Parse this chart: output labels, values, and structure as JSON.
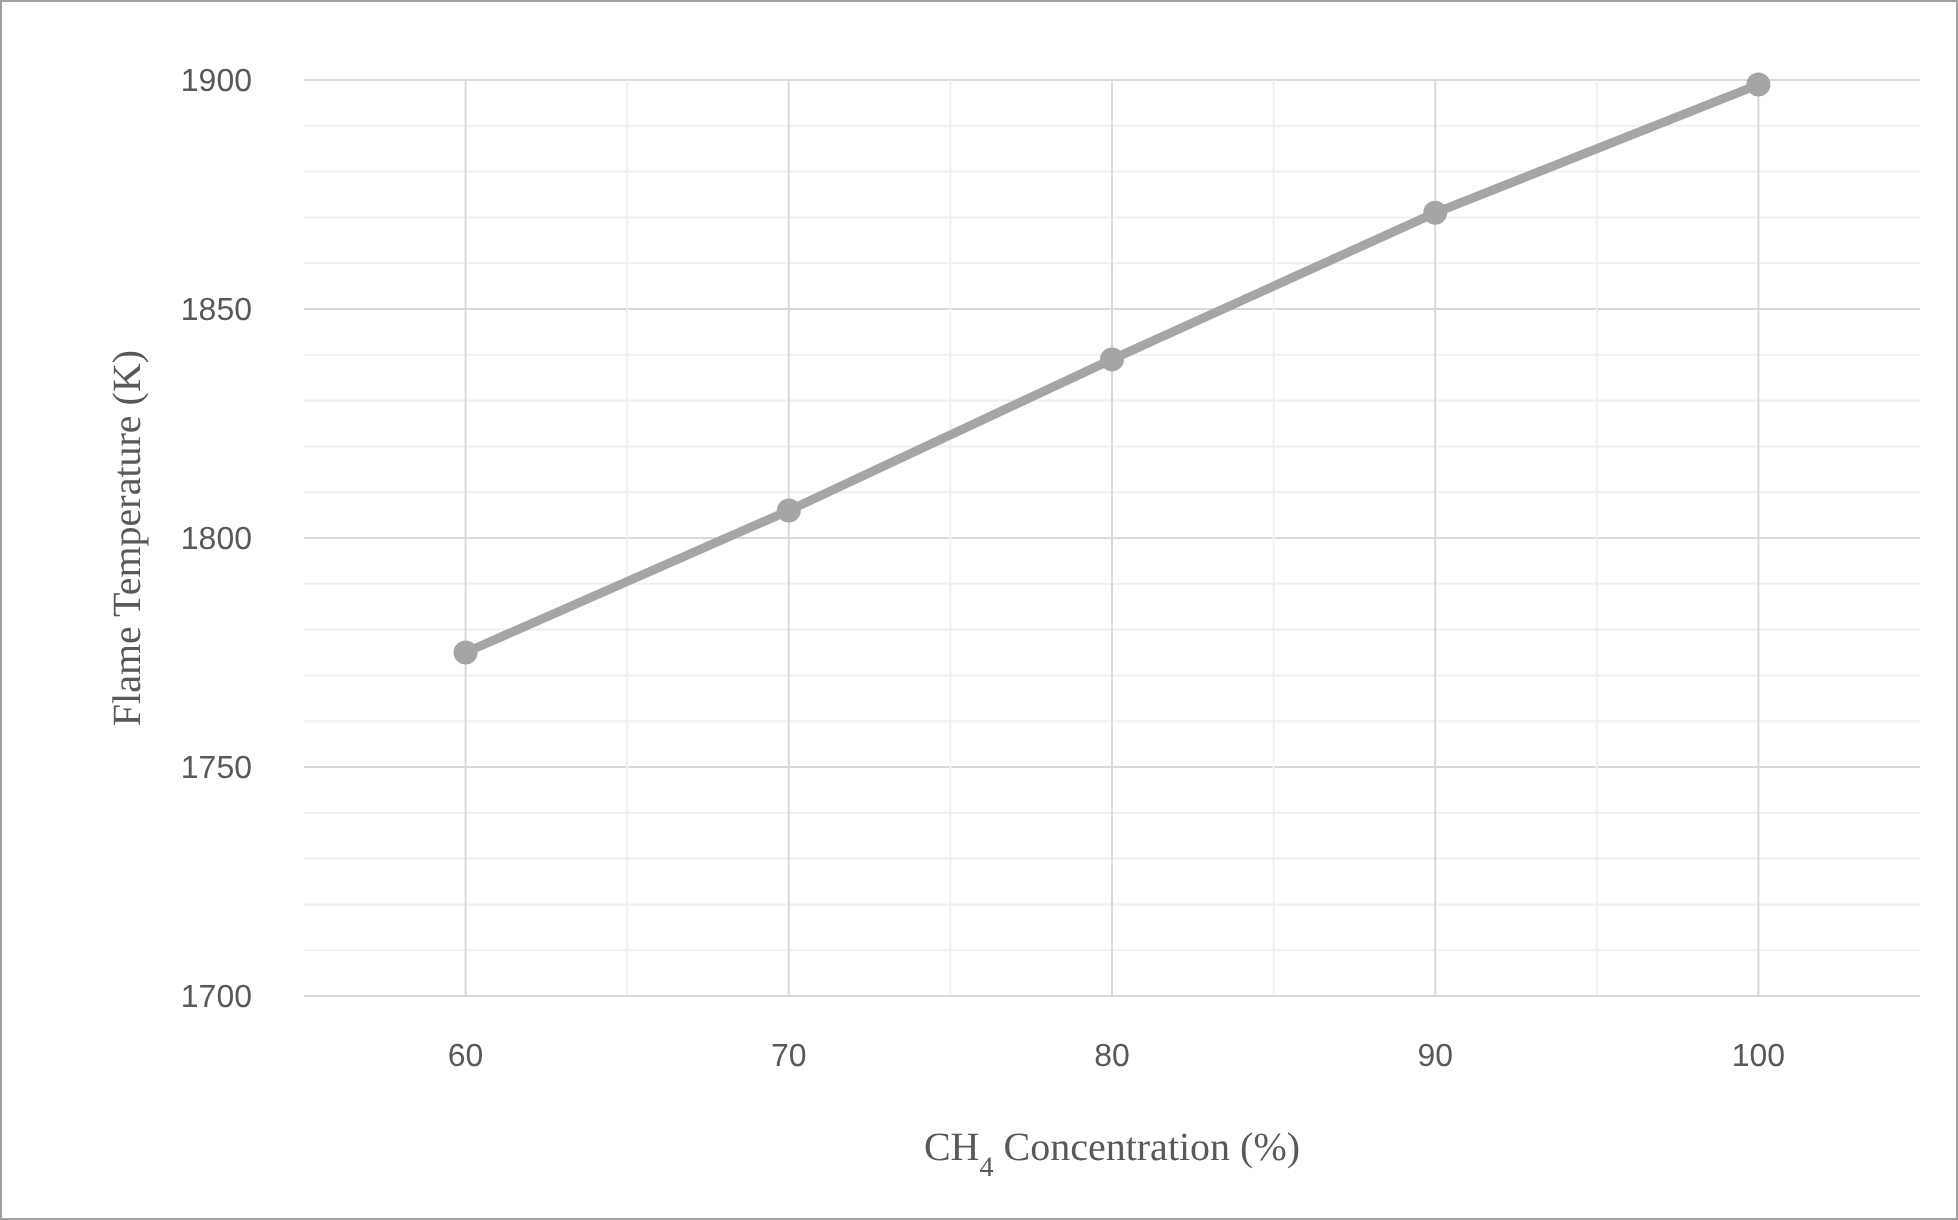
{
  "chart_data": {
    "type": "line",
    "xlabel": "CH$_{4}$ Concentration (%)",
    "ylabel": "Flame Temperature (K)",
    "x": [
      60,
      70,
      80,
      90,
      100
    ],
    "series": [
      {
        "color": "#a5a5a5",
        "values": [
          1775,
          1806,
          1839,
          1871,
          1899
        ]
      }
    ],
    "xlim": [
      55,
      105
    ],
    "xticks": [
      60,
      {
        "value": 65,
        "label": null
      },
      70,
      {
        "value": 75,
        "label": null
      },
      80,
      {
        "value": 85,
        "label": null
      },
      90,
      {
        "value": 95,
        "label": null
      },
      100
    ],
    "ylim": [
      1700,
      1900
    ],
    "yticks": [
      1700,
      {
        "value": 1710,
        "label": null
      },
      {
        "value": 1720,
        "label": null
      },
      {
        "value": 1730,
        "label": null
      },
      {
        "value": 1740,
        "label": null
      },
      1750,
      {
        "value": 1760,
        "label": null
      },
      {
        "value": 1770,
        "label": null
      },
      {
        "value": 1780,
        "label": null
      },
      {
        "value": 1790,
        "label": null
      },
      1800,
      {
        "value": 1810,
        "label": null
      },
      {
        "value": 1820,
        "label": null
      },
      {
        "value": 1830,
        "label": null
      },
      {
        "value": 1840,
        "label": null
      },
      1850,
      {
        "value": 1860,
        "label": null
      },
      {
        "value": 1870,
        "label": null
      },
      {
        "value": 1880,
        "label": null
      },
      {
        "value": 1890,
        "label": null
      },
      1900
    ],
    "grid": true,
    "marker": "circle",
    "line_style": "solid"
  }
}
